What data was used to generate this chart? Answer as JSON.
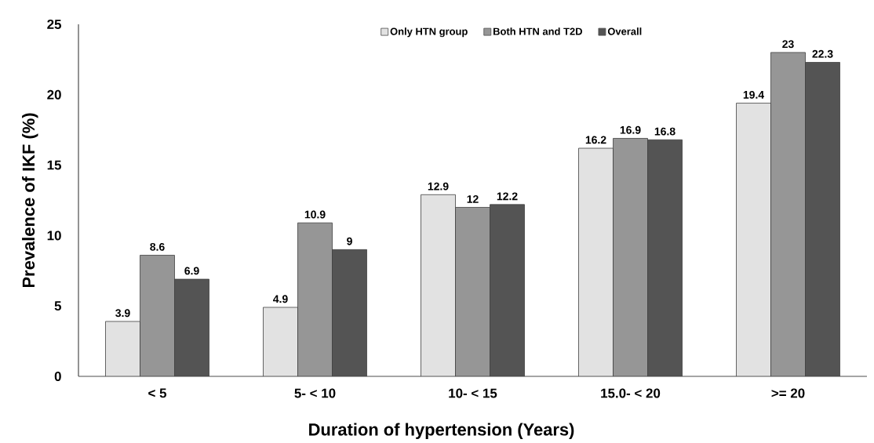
{
  "chart_data": {
    "type": "bar",
    "xlabel": "Duration of hypertension (Years)",
    "ylabel": "Prevalence of IKF (%)",
    "categories": [
      "< 5",
      "5- < 10",
      "10- < 15",
      "15.0- < 20",
      ">= 20"
    ],
    "series": [
      {
        "name": "Only HTN group",
        "color": "#e2e2e2",
        "values": [
          3.9,
          4.9,
          12.9,
          16.2,
          19.4
        ]
      },
      {
        "name": "Both HTN and T2D",
        "color": "#969696",
        "values": [
          8.6,
          10.9,
          12,
          16.9,
          23
        ]
      },
      {
        "name": "Overall",
        "color": "#545454",
        "values": [
          6.9,
          9,
          12.2,
          16.8,
          22.3
        ]
      }
    ],
    "ylim": [
      0,
      25
    ],
    "yticks": [
      0,
      5,
      10,
      15,
      20,
      25
    ],
    "data_labels": true,
    "legend": "top",
    "grid": false
  }
}
